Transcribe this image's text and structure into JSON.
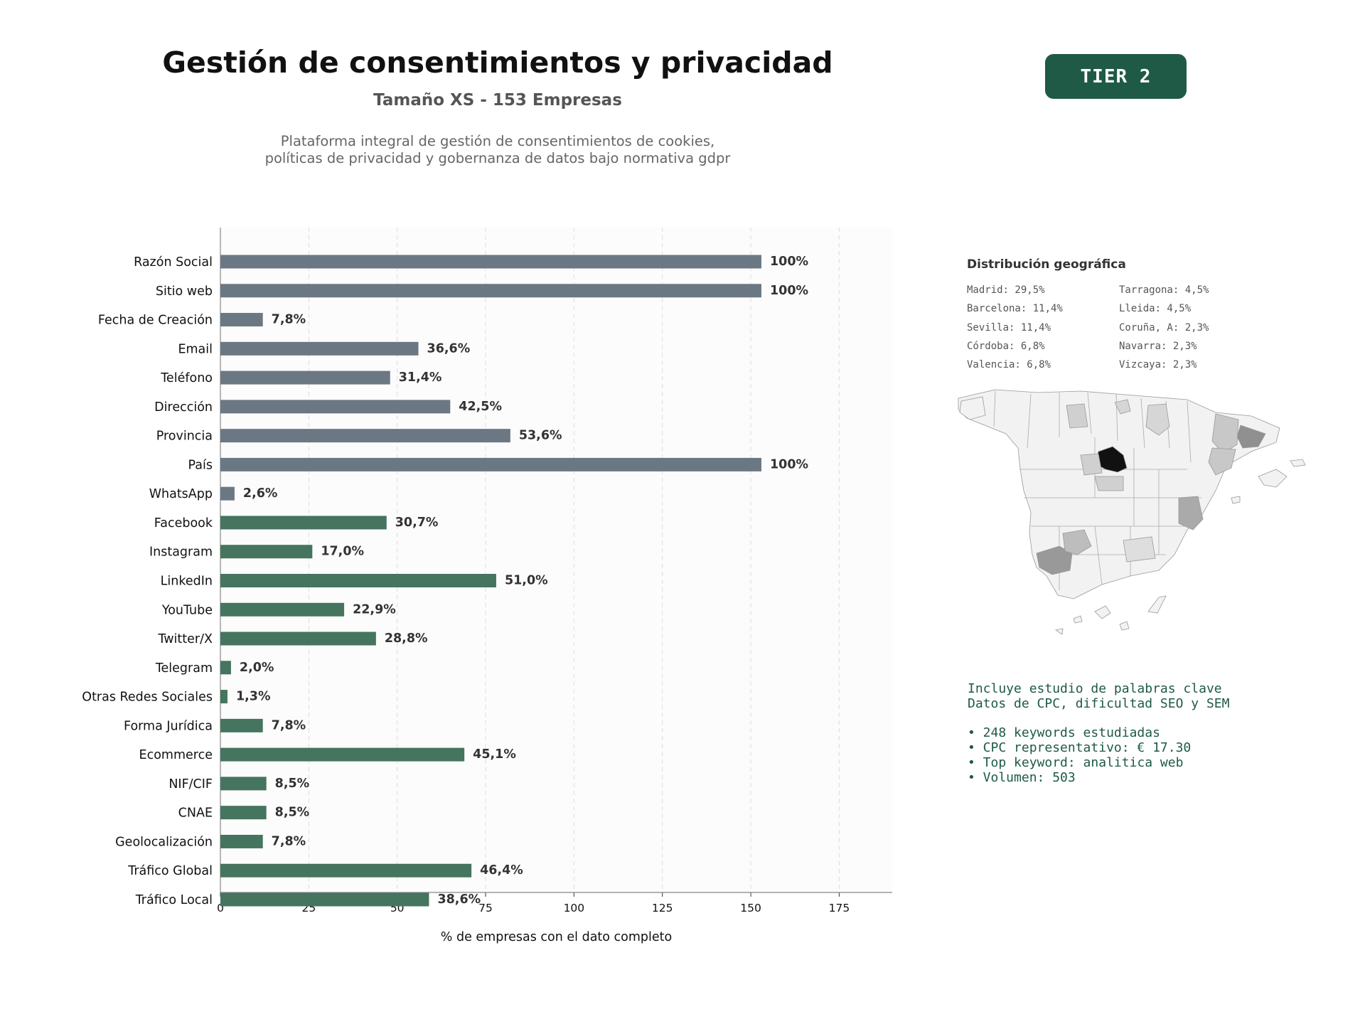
{
  "header": {
    "title": "Gestión de consentimientos y privacidad",
    "subtitle": "Tamaño XS - 153 Empresas",
    "description_line1": "Plataforma integral de gestión de consentimientos de cookies,",
    "description_line2": "políticas de privacidad y gobernanza de datos bajo normativa gdpr",
    "tier": "TIER 2"
  },
  "colors": {
    "bar_basic": "#6b7884",
    "bar_social": "#45745f",
    "accent": "#1e5a46"
  },
  "chart_data": {
    "type": "bar",
    "orientation": "horizontal",
    "xlabel": "% de empresas con el dato completo",
    "xlim": [
      0,
      190
    ],
    "xticks": [
      0,
      25,
      50,
      75,
      100,
      125,
      150,
      175
    ],
    "grid": "x-dashed",
    "categories": [
      "Razón Social",
      "Sitio web",
      "Fecha de Creación",
      "Email",
      "Teléfono",
      "Dirección",
      "Provincia",
      "País",
      "WhatsApp",
      "Facebook",
      "Instagram",
      "LinkedIn",
      "YouTube",
      "Twitter/X",
      "Telegram",
      "Otras Redes Sociales",
      "Forma Jurídica",
      "Ecommerce",
      "NIF/CIF",
      "CNAE",
      "Geolocalización",
      "Tráfico Global",
      "Tráfico Local"
    ],
    "values": [
      153,
      153,
      12,
      56,
      48,
      65,
      82,
      153,
      4,
      47,
      26,
      78,
      35,
      44,
      3,
      2,
      12,
      69,
      13,
      13,
      12,
      71,
      59
    ],
    "labels": [
      "100%",
      "100%",
      "7,8%",
      "36,6%",
      "31,4%",
      "42,5%",
      "53,6%",
      "100%",
      "2,6%",
      "30,7%",
      "17,0%",
      "51,0%",
      "22,9%",
      "28,8%",
      "2,0%",
      "1,3%",
      "7,8%",
      "45,1%",
      "8,5%",
      "8,5%",
      "7,8%",
      "46,4%",
      "38,6%"
    ],
    "groups": [
      "basic",
      "basic",
      "basic",
      "basic",
      "basic",
      "basic",
      "basic",
      "basic",
      "basic",
      "social",
      "social",
      "social",
      "social",
      "social",
      "social",
      "social",
      "social",
      "social",
      "social",
      "social",
      "social",
      "social",
      "social"
    ]
  },
  "geo": {
    "title": "Distribución geográfica",
    "entries": [
      "Madrid: 29,5%",
      "Tarragona: 4,5%",
      "Barcelona: 11,4%",
      "Lleida: 4,5%",
      "Sevilla: 11,4%",
      "Coruña, A: 2,3%",
      "Córdoba: 6,8%",
      "Navarra: 2,3%",
      "Valencia: 6,8%",
      "Vizcaya: 2,3%"
    ]
  },
  "keywords": {
    "line1": "Incluye estudio de palabras clave",
    "line2": "Datos de CPC, dificultad SEO y SEM",
    "bullets": [
      "• 248 keywords estudiadas",
      "• CPC representativo: € 17.30",
      "• Top keyword: analitica web",
      "• Volumen: 503"
    ]
  }
}
